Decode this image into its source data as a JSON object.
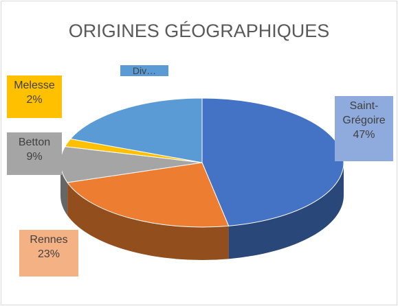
{
  "chart_data": {
    "type": "pie3d",
    "title": "ORIGINES GÉOGRAPHIQUES",
    "categories": [
      "Saint-Grégoire",
      "Rennes",
      "Betton",
      "Melesse",
      "Div…"
    ],
    "values": [
      47,
      23,
      9,
      2,
      19
    ],
    "value_labels": [
      "47%",
      "23%",
      "9%",
      "2%",
      null
    ],
    "colors": [
      "#4472c4",
      "#ed7d31",
      "#a5a5a5",
      "#ffc000",
      "#5b9bd5"
    ]
  }
}
